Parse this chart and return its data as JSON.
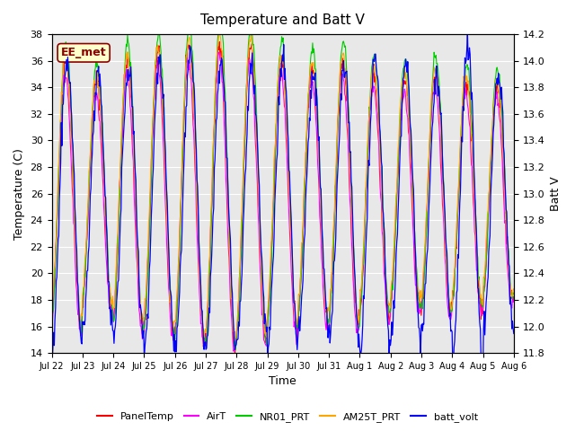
{
  "title": "Temperature and Batt V",
  "xlabel": "Time",
  "ylabel_left": "Temperature (C)",
  "ylabel_right": "Batt V",
  "ylim_left": [
    14,
    38
  ],
  "ylim_right": [
    11.8,
    14.2
  ],
  "xtick_labels": [
    "Jul 22",
    "Jul 23",
    "Jul 24",
    "Jul 25",
    "Jul 26",
    "Jul 27",
    "Jul 28",
    "Jul 29",
    "Jul 30",
    "Jul 31",
    "Aug 1",
    "Aug 2",
    "Aug 3",
    "Aug 4",
    "Aug 5",
    "Aug 6"
  ],
  "annotation": "EE_met",
  "bg_color": "#e8e8e8",
  "series_colors": {
    "PanelTemp": "#ff0000",
    "AirT": "#ff00ff",
    "NR01_PRT": "#00cc00",
    "AM25T_PRT": "#ffa500",
    "batt_volt": "#0000ff"
  },
  "amp_mods_temp": [
    1.0,
    0.85,
    1.0,
    1.05,
    1.1,
    1.15,
    1.1,
    1.0,
    0.95,
    1.0,
    0.9,
    0.85,
    0.9,
    0.85,
    0.8
  ],
  "amp_mods_batt": [
    1.0,
    0.9,
    0.95,
    1.0,
    1.05,
    1.0,
    0.95,
    1.0,
    0.9,
    0.95,
    1.0,
    0.95,
    0.9,
    1.1,
    0.9
  ],
  "n_days": 15,
  "points_per_day": 48
}
